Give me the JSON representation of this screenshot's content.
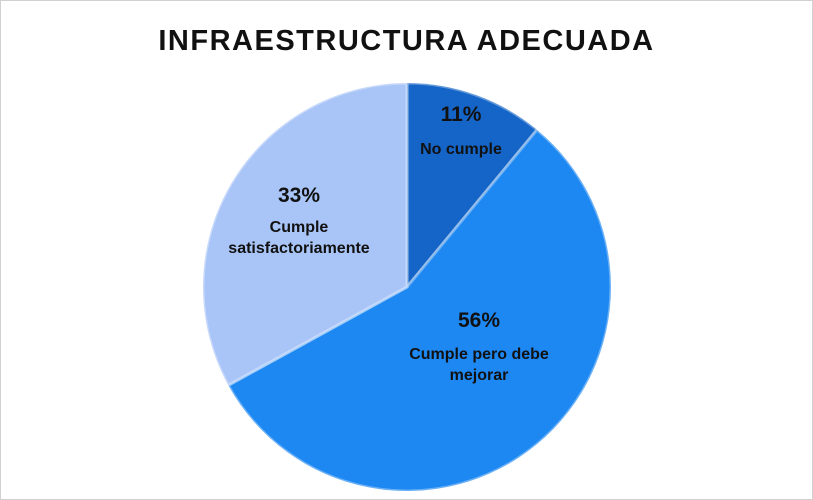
{
  "chart_data": {
    "type": "pie",
    "title": "INFRAESTRUCTURA ADECUADA",
    "categories": [
      "No cumple",
      "Cumple pero debe mejorar",
      "Cumple satisfactoriamente"
    ],
    "values": [
      11,
      56,
      33
    ],
    "value_labels": [
      "11%",
      "56%",
      "33%"
    ],
    "colors": [
      "#1565c8",
      "#1e88f2",
      "#a9c5f7"
    ]
  }
}
